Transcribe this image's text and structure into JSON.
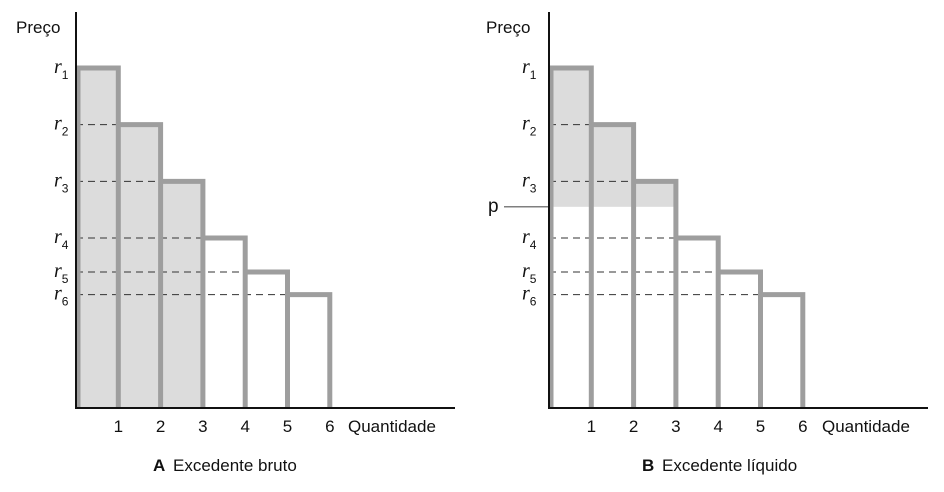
{
  "colors": {
    "step": "#9e9e9e",
    "shade": "#dcdcdc",
    "axis": "#111111",
    "dash": "#333333"
  },
  "chart_data": [
    {
      "type": "bar",
      "panel": "A",
      "caption_letter": "A",
      "caption_text": "Excedente bruto",
      "ylabel": "Preço",
      "xlabel": "Quantidade",
      "categories": [
        "1",
        "2",
        "3",
        "4",
        "5",
        "6"
      ],
      "values": [
        6,
        5,
        4,
        3,
        2.4,
        2
      ],
      "reservation_price_labels": [
        "r",
        "r",
        "r",
        "r",
        "r",
        "r"
      ],
      "reservation_price_subscripts": [
        "1",
        "2",
        "3",
        "4",
        "5",
        "6"
      ],
      "shaded_units": 3,
      "price": null,
      "price_label": ""
    },
    {
      "type": "bar",
      "panel": "B",
      "caption_letter": "B",
      "caption_text": "Excedente líquido",
      "ylabel": "Preço",
      "xlabel": "Quantidade",
      "categories": [
        "1",
        "2",
        "3",
        "4",
        "5",
        "6"
      ],
      "values": [
        6,
        5,
        4,
        3,
        2.4,
        2
      ],
      "reservation_price_labels": [
        "r",
        "r",
        "r",
        "r",
        "r",
        "r"
      ],
      "reservation_price_subscripts": [
        "1",
        "2",
        "3",
        "4",
        "5",
        "6"
      ],
      "shaded_units": 3,
      "price": 3.55,
      "price_label": "p"
    }
  ]
}
